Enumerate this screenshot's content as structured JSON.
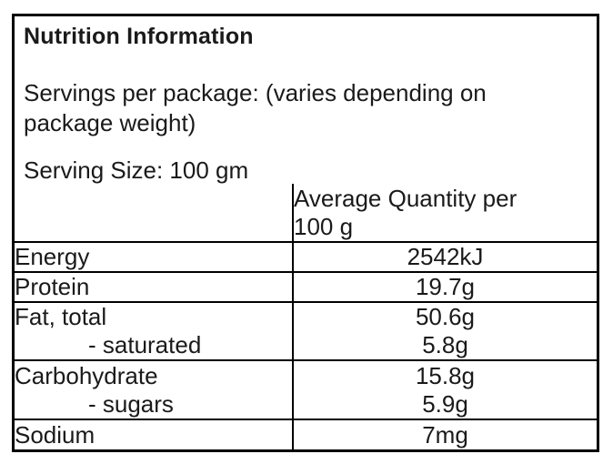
{
  "colors": {
    "text": "#1a1a1a",
    "border": "#000000",
    "background": "#ffffff"
  },
  "label": {
    "title": "Nutrition Information",
    "servings_line": "Servings per package: (varies depending on package weight)",
    "serving_size_line": "Serving Size: 100 gm"
  },
  "table": {
    "value_column_header": "Average Quantity per\n100 g",
    "rows": [
      {
        "label": "Energy",
        "value": "2542kJ"
      },
      {
        "label": "Protein",
        "value": "19.7g"
      },
      {
        "label": "Fat, total",
        "value": "50.6g",
        "sub_label": "- saturated",
        "sub_value": "5.8g"
      },
      {
        "label": "Carbohydrate",
        "value": "15.8g",
        "sub_label": "- sugars",
        "sub_value": "5.9g"
      },
      {
        "label": "Sodium",
        "value": "7mg"
      }
    ]
  }
}
